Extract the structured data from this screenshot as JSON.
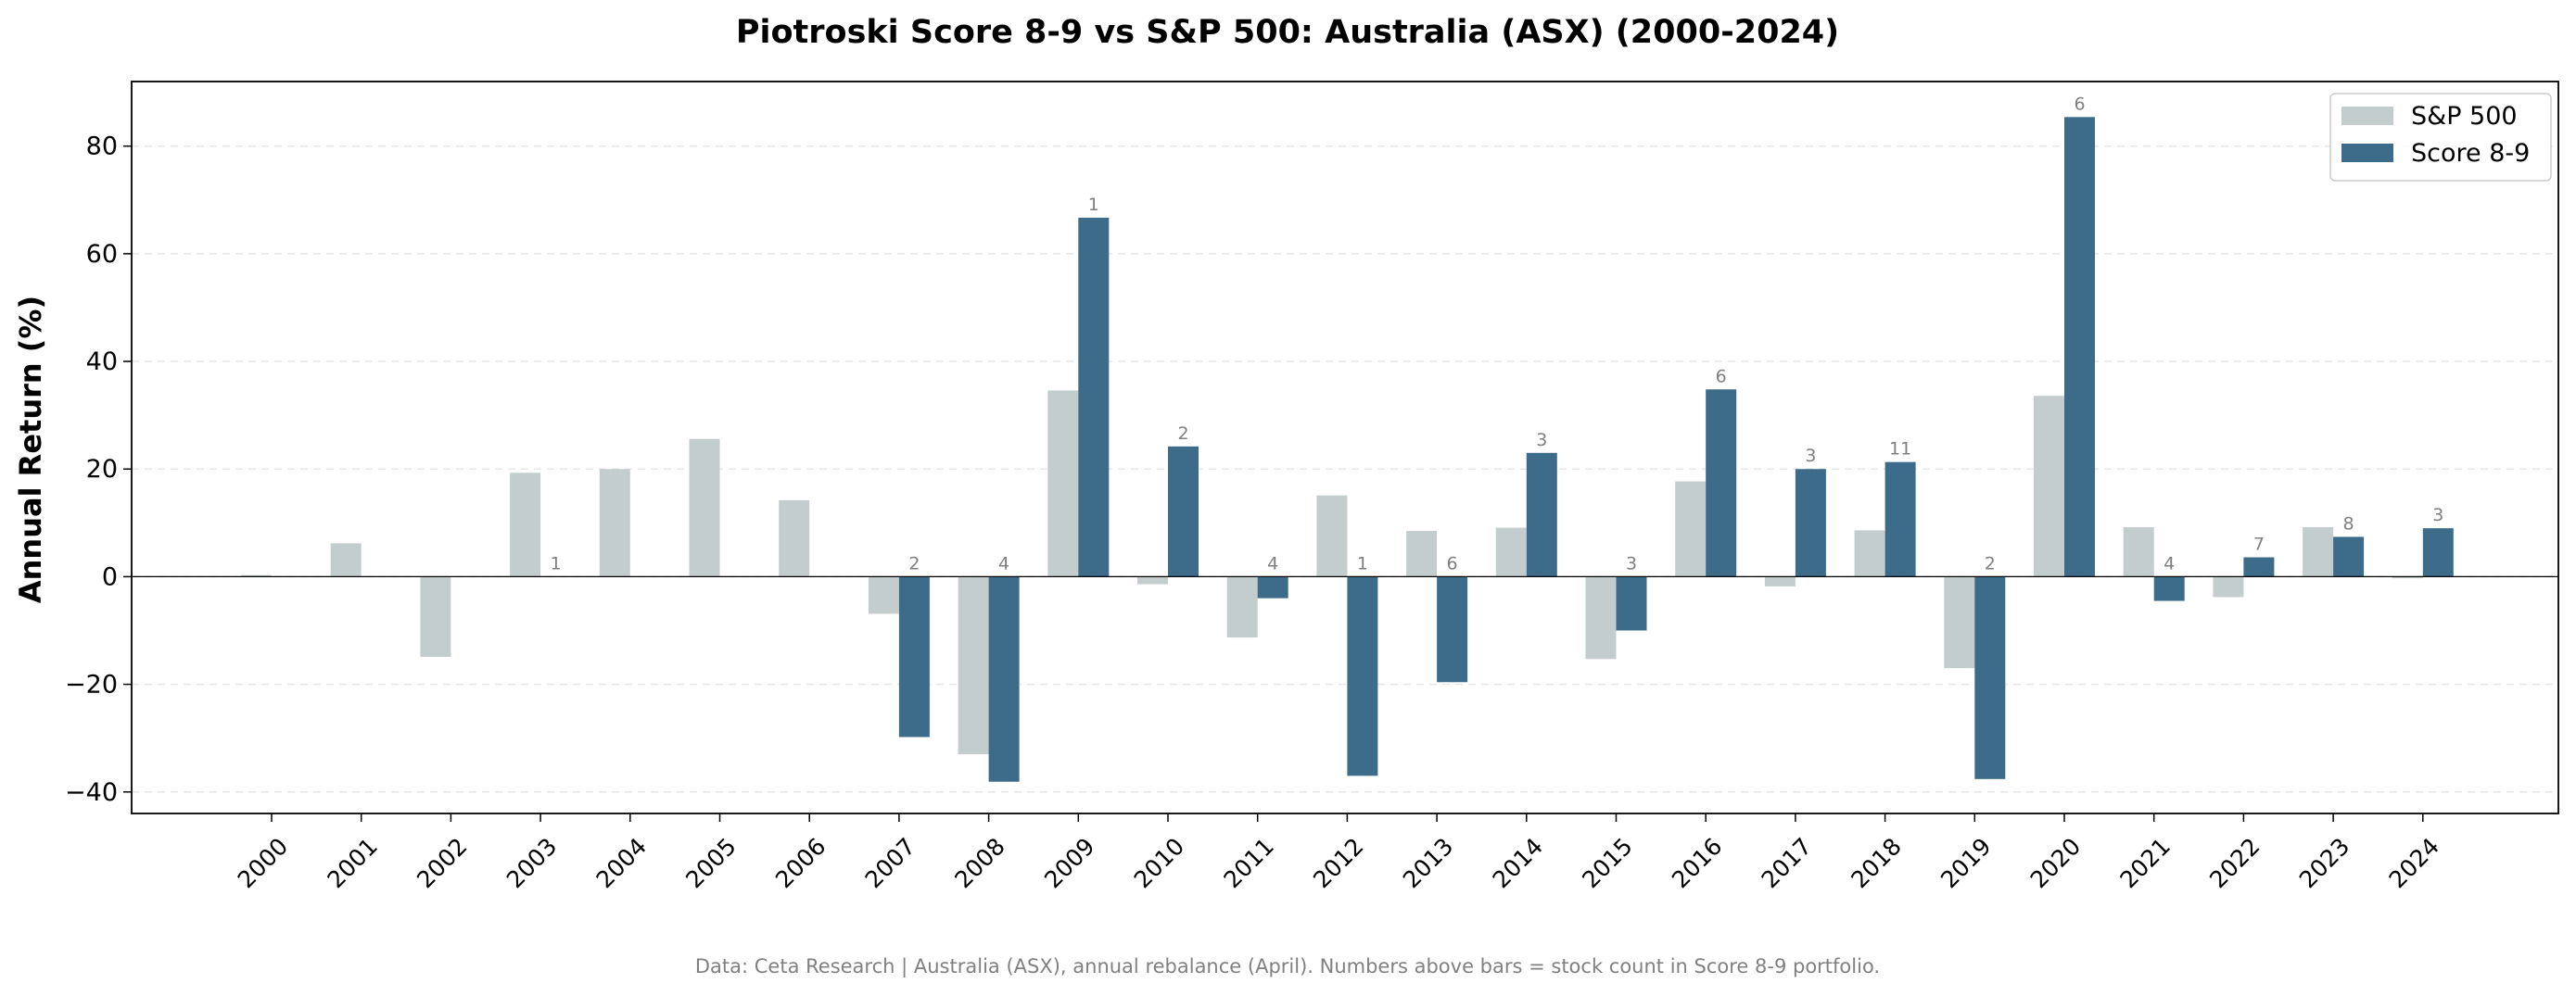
{
  "chart_data": {
    "type": "bar",
    "title": "Piotroski Score 8-9 vs S&P 500: Australia (ASX) (2000-2024)",
    "xlabel": "",
    "ylabel": "Annual Return (%)",
    "ylim": [
      -44,
      92
    ],
    "yticks": [
      -40,
      -20,
      0,
      20,
      40,
      60,
      80
    ],
    "ytick_labels": [
      "−40",
      "−20",
      "0",
      "20",
      "40",
      "60",
      "80"
    ],
    "grid": "horizontal dashed",
    "legend_position": "top-right",
    "categories": [
      "2000",
      "2001",
      "2002",
      "2003",
      "2004",
      "2005",
      "2006",
      "2007",
      "2008",
      "2009",
      "2010",
      "2011",
      "2012",
      "2013",
      "2014",
      "2015",
      "2016",
      "2017",
      "2018",
      "2019",
      "2020",
      "2021",
      "2022",
      "2023",
      "2024"
    ],
    "series": [
      {
        "name": "S&P 500",
        "color": "#c3cdcd",
        "values": [
          0.3,
          6.2,
          -14.9,
          19.3,
          20.0,
          25.6,
          14.2,
          -6.9,
          -33.0,
          34.6,
          -1.4,
          -11.3,
          15.1,
          8.5,
          9.1,
          -15.3,
          17.7,
          -1.8,
          8.6,
          -17.0,
          33.6,
          9.2,
          -3.8,
          9.2,
          -0.3
        ]
      },
      {
        "name": "Score 8-9",
        "color": "#3d6b8a",
        "values": [
          null,
          null,
          null,
          0.0,
          null,
          null,
          null,
          -29.8,
          -38.1,
          66.7,
          24.2,
          -4.0,
          -37.0,
          -19.6,
          23.0,
          -10.0,
          34.8,
          20.0,
          21.3,
          -37.6,
          85.4,
          -4.5,
          3.6,
          7.4,
          9.0
        ]
      }
    ],
    "stock_counts": [
      "",
      "",
      "",
      "1",
      "",
      "",
      "",
      "2",
      "4",
      "1",
      "2",
      "4",
      "1",
      "6",
      "3",
      "3",
      "6",
      "3",
      "11",
      "2",
      "6",
      "4",
      "7",
      "8",
      "3"
    ],
    "footnote": "Data: Ceta Research | Australia (ASX), annual rebalance (April). Numbers above bars = stock count in Score 8-9 portfolio."
  }
}
